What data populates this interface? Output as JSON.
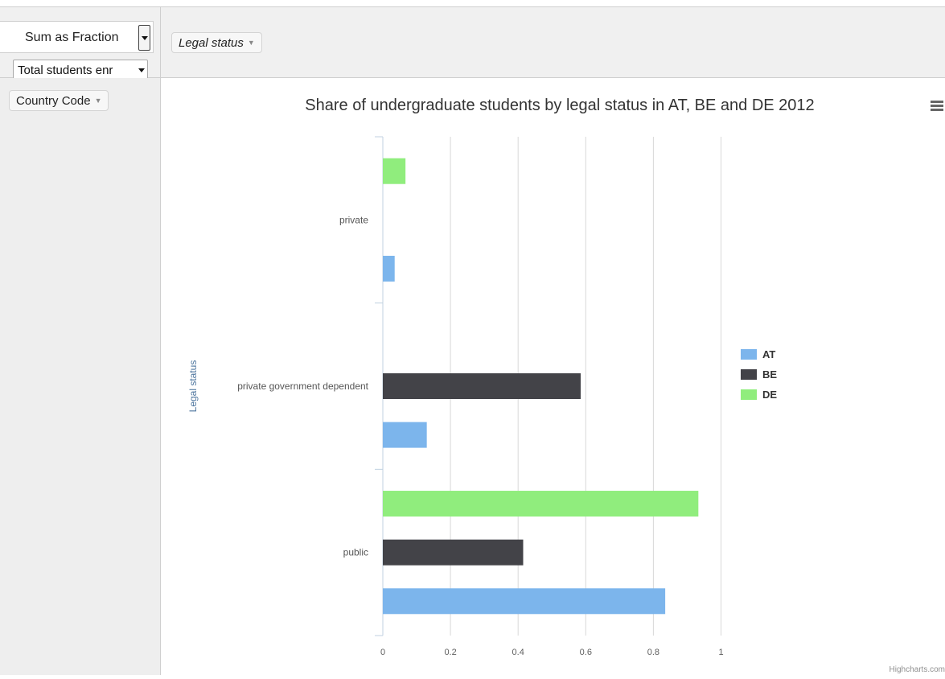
{
  "pivot": {
    "aggregator": "Sum as Fraction",
    "value_field": "Total students enr",
    "col_field": "Legal status",
    "row_field": "Country Code"
  },
  "chart_data": {
    "type": "bar",
    "orientation": "horizontal",
    "title": "Share of undergraduate students by legal status in AT, BE and DE 2012",
    "xlabel": "Legal status",
    "ylabel": "",
    "categories": [
      "private",
      "private government dependent",
      "public"
    ],
    "series": [
      {
        "name": "AT",
        "color": "#7cb5ec",
        "values": [
          0.035,
          0.13,
          0.835
        ]
      },
      {
        "name": "BE",
        "color": "#434348",
        "values": [
          null,
          0.585,
          0.415
        ]
      },
      {
        "name": "DE",
        "color": "#90ed7d",
        "values": [
          0.067,
          null,
          0.933
        ]
      }
    ],
    "value_axis": {
      "min": 0,
      "max": 1,
      "ticks": [
        "0",
        "0.2",
        "0.4",
        "0.6",
        "0.8",
        "1"
      ]
    },
    "grid": true,
    "legend_position": "right",
    "credits": "Highcharts.com",
    "menu_icon": "hamburger-menu-icon"
  }
}
